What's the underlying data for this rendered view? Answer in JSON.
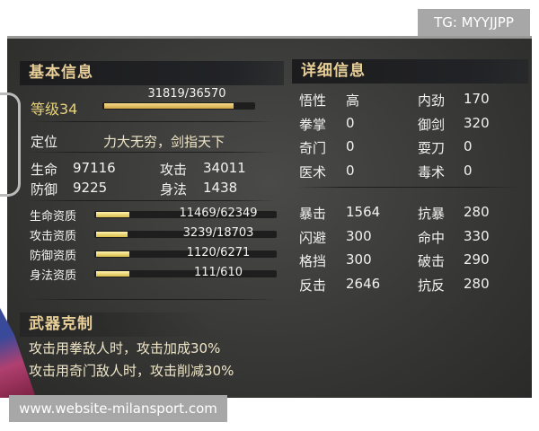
{
  "watermark_top": "TG: MYYJJPP",
  "watermark_bottom": "www.website-milansport.com",
  "basic": {
    "title": "基本信息",
    "level_label": "等级34",
    "exp_text": "31819/36570",
    "exp_fraction": 0.87,
    "position_label": "定位",
    "position_value": "力大无穷，剑指天下",
    "stats": [
      {
        "label": "生命",
        "value": "97116"
      },
      {
        "label": "攻击",
        "value": "34011"
      },
      {
        "label": "防御",
        "value": "9225"
      },
      {
        "label": "身法",
        "value": "1438"
      }
    ],
    "aptitudes": [
      {
        "label": "生命资质",
        "value": "11469/62349",
        "fraction": 0.18
      },
      {
        "label": "攻击资质",
        "value": "3239/18703",
        "fraction": 0.17
      },
      {
        "label": "防御资质",
        "value": "1120/6271",
        "fraction": 0.18
      },
      {
        "label": "身法资质",
        "value": "111/610",
        "fraction": 0.18
      }
    ]
  },
  "weapon": {
    "title": "武器克制",
    "lines": [
      "攻击用拳敌人时，攻击加成30%",
      "攻击用奇门敌人时，攻击削减30%"
    ]
  },
  "detail": {
    "title": "详细信息",
    "group1": [
      {
        "label": "悟性",
        "value": "高"
      },
      {
        "label": "内劲",
        "value": "170"
      },
      {
        "label": "拳掌",
        "value": "0"
      },
      {
        "label": "御剑",
        "value": "320"
      },
      {
        "label": "奇门",
        "value": "0"
      },
      {
        "label": "耍刀",
        "value": "0"
      },
      {
        "label": "医术",
        "value": "0"
      },
      {
        "label": "毒术",
        "value": "0"
      }
    ],
    "group2": [
      {
        "label": "暴击",
        "value": "1564"
      },
      {
        "label": "抗暴",
        "value": "280"
      },
      {
        "label": "闪避",
        "value": "300"
      },
      {
        "label": "命中",
        "value": "330"
      },
      {
        "label": "格挡",
        "value": "300"
      },
      {
        "label": "破击",
        "value": "290"
      },
      {
        "label": "反击",
        "value": "2646"
      },
      {
        "label": "抗反",
        "value": "280"
      }
    ]
  }
}
